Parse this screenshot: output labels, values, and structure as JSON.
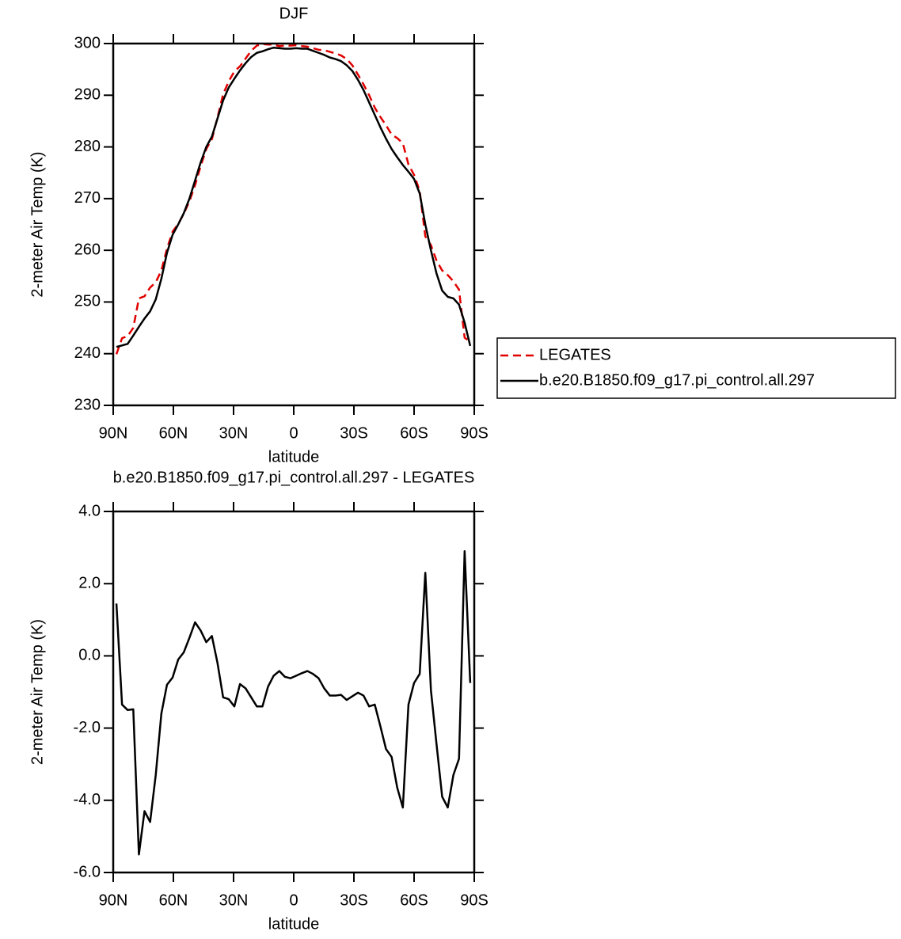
{
  "chart_data": [
    {
      "type": "line",
      "title": "DJF",
      "x_label": "latitude",
      "y_label": "2-meter Air Temp (K)",
      "x": [
        88.4,
        85.6,
        82.8,
        80,
        77.2,
        74.4,
        71.6,
        68.8,
        66,
        63.2,
        60.4,
        57.6,
        54.8,
        52,
        49.2,
        46.4,
        43.6,
        40.8,
        38,
        35.2,
        32.4,
        29.6,
        26.8,
        24,
        21.2,
        18.4,
        15.6,
        12.8,
        10,
        7.2,
        4.4,
        1.6,
        -1.2,
        -4,
        -6.8,
        -9.6,
        -12.4,
        -15.2,
        -18,
        -20.8,
        -23.6,
        -26.4,
        -29.2,
        -32,
        -34.8,
        -37.6,
        -40.4,
        -43.2,
        -46,
        -48.8,
        -51.6,
        -54.4,
        -57.2,
        -60,
        -62.8,
        -65.6,
        -68.4,
        -71.2,
        -74,
        -76.8,
        -79.6,
        -82.4,
        -85.2,
        -88
      ],
      "series": [
        {
          "name": "LEGATES",
          "color": "#e00000",
          "style": "dashed",
          "values": [
            239.9,
            243.0,
            243.4,
            245.0,
            250.7,
            251.1,
            252.8,
            253.8,
            256.1,
            260.3,
            263.6,
            265.1,
            267.1,
            269.5,
            272.6,
            276.3,
            279.6,
            281.5,
            285.7,
            290.2,
            292.7,
            294.6,
            295.6,
            297.1,
            298.6,
            299.6,
            299.9,
            299.8,
            299.8,
            299.5,
            299.6,
            299.6,
            299.7,
            299.5,
            299.4,
            299.1,
            298.8,
            298.7,
            298.4,
            298.1,
            297.7,
            297.0,
            295.8,
            294.0,
            292.1,
            290.0,
            287.6,
            285.8,
            284.2,
            282.4,
            281.7,
            280.7,
            276.6,
            274.6,
            271.5,
            262.7,
            261.0,
            258.0,
            256.1,
            255.2,
            254.0,
            252.4,
            243.1,
            242.3
          ]
        },
        {
          "name": "b.e20.B1850.f09_g17.pi_control.all.297",
          "color": "#000000",
          "style": "solid",
          "values": [
            241.3,
            241.6,
            241.9,
            243.5,
            245.2,
            246.8,
            248.2,
            250.5,
            254.5,
            259.5,
            263.0,
            265.0,
            267.2,
            270.0,
            273.5,
            277.0,
            280.0,
            282.0,
            285.5,
            289.0,
            291.5,
            293.2,
            294.8,
            296.2,
            297.4,
            298.2,
            298.5,
            298.9,
            299.2,
            299.1,
            299.0,
            299.0,
            299.1,
            299.0,
            299.0,
            298.6,
            298.2,
            297.8,
            297.3,
            297.0,
            296.6,
            295.8,
            294.7,
            293.0,
            291.0,
            288.6,
            286.2,
            283.8,
            281.6,
            279.6,
            278.0,
            276.5,
            275.2,
            273.8,
            271.0,
            265.0,
            260.0,
            255.5,
            252.2,
            251.0,
            250.7,
            249.5,
            246.0,
            241.5
          ]
        }
      ],
      "xlim": [
        90,
        -90
      ],
      "xticks": [
        {
          "value": 90,
          "label": "90N"
        },
        {
          "value": 60,
          "label": "60N"
        },
        {
          "value": 30,
          "label": "30N"
        },
        0,
        {
          "value": -30,
          "label": "30S"
        },
        {
          "value": -60,
          "label": "60S"
        },
        {
          "value": -90,
          "label": "90S"
        }
      ],
      "ylim": [
        230,
        300
      ],
      "yticks": [
        230,
        240,
        250,
        260,
        270,
        280,
        290,
        300
      ],
      "legend": "right"
    },
    {
      "type": "line",
      "title": "b.e20.B1850.f09_g17.pi_control.all.297 - LEGATES",
      "x_label": "latitude",
      "y_label": "2-meter Air Temp (K)",
      "x": [
        88.4,
        85.6,
        82.8,
        80,
        77.2,
        74.4,
        71.6,
        68.8,
        66,
        63.2,
        60.4,
        57.6,
        54.8,
        52,
        49.2,
        46.4,
        43.6,
        40.8,
        38,
        35.2,
        32.4,
        29.6,
        26.8,
        24,
        21.2,
        18.4,
        15.6,
        12.8,
        10,
        7.2,
        4.4,
        1.6,
        -1.2,
        -4,
        -6.8,
        -9.6,
        -12.4,
        -15.2,
        -18,
        -20.8,
        -23.6,
        -26.4,
        -29.2,
        -32,
        -34.8,
        -37.6,
        -40.4,
        -43.2,
        -46,
        -48.8,
        -51.6,
        -54.4,
        -57.2,
        -60,
        -62.8,
        -65.6,
        -68.4,
        -71.2,
        -74,
        -76.8,
        -79.6,
        -82.4,
        -85.2,
        -88
      ],
      "values": [
        1.45,
        -1.35,
        -1.5,
        -1.48,
        -5.5,
        -4.3,
        -4.6,
        -3.3,
        -1.6,
        -0.8,
        -0.6,
        -0.1,
        0.1,
        0.5,
        0.93,
        0.7,
        0.38,
        0.55,
        -0.2,
        -1.15,
        -1.2,
        -1.4,
        -0.78,
        -0.9,
        -1.15,
        -1.4,
        -1.4,
        -0.85,
        -0.55,
        -0.42,
        -0.58,
        -0.62,
        -0.55,
        -0.48,
        -0.42,
        -0.5,
        -0.62,
        -0.9,
        -1.1,
        -1.1,
        -1.08,
        -1.22,
        -1.12,
        -1.02,
        -1.1,
        -1.4,
        -1.35,
        -1.95,
        -2.58,
        -2.8,
        -3.65,
        -4.2,
        -1.35,
        -0.75,
        -0.5,
        2.3,
        -0.95,
        -2.45,
        -3.9,
        -4.2,
        -3.3,
        -2.85,
        2.9,
        -0.75
      ],
      "color": "#000000",
      "xlim": [
        90,
        -90
      ],
      "xticks": [
        {
          "value": 90,
          "label": "90N"
        },
        {
          "value": 60,
          "label": "60N"
        },
        {
          "value": 30,
          "label": "30N"
        },
        0,
        {
          "value": -30,
          "label": "30S"
        },
        {
          "value": -60,
          "label": "60S"
        },
        {
          "value": -90,
          "label": "90S"
        }
      ],
      "ylim": [
        -6,
        4
      ],
      "yticks": [
        {
          "value": -6,
          "label": "-6.0"
        },
        {
          "value": -4,
          "label": "-4.0"
        },
        {
          "value": -2,
          "label": "-2.0"
        },
        {
          "value": 0,
          "label": "0.0"
        },
        {
          "value": 2,
          "label": "2.0"
        },
        {
          "value": 4,
          "label": "4.0"
        }
      ]
    }
  ]
}
